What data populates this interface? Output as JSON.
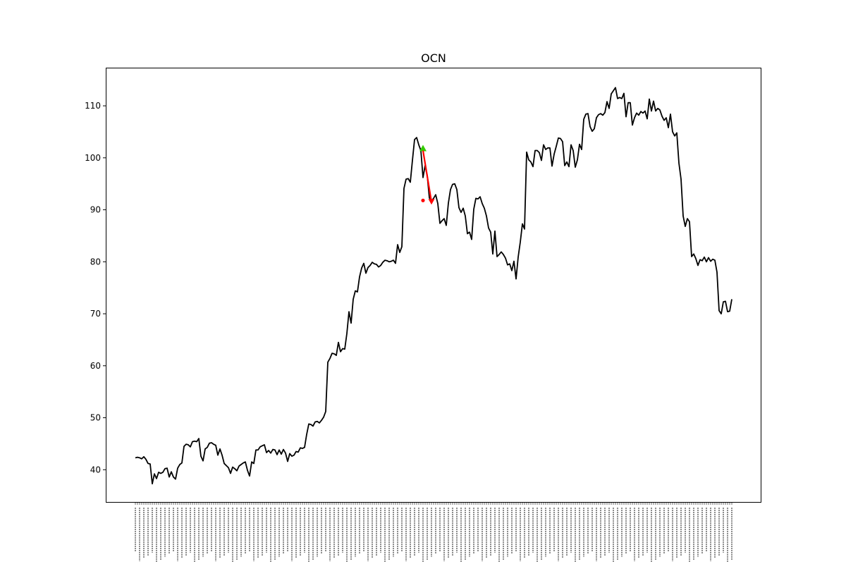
{
  "chart_data": {
    "type": "line",
    "title": "OCN",
    "xlabel": "",
    "ylabel": "",
    "ylim": [
      33.8,
      117.2
    ],
    "yticks": [
      40,
      50,
      60,
      70,
      80,
      90,
      100,
      110
    ],
    "grid": false,
    "x_tick_labels_note": "dense rotated date labels (illegible)",
    "series": [
      {
        "color": "#000000",
        "values": [
          42.3,
          42.4,
          42.3,
          42.1,
          42.5,
          42.0,
          41.2,
          41.1,
          37.3,
          39.2,
          38.3,
          39.5,
          39.3,
          39.5,
          40.2,
          40.3,
          38.6,
          39.6,
          38.6,
          38.2,
          40.3,
          41.0,
          41.3,
          44.5,
          44.9,
          44.8,
          44.4,
          45.4,
          45.5,
          45.4,
          46.0,
          42.6,
          41.7,
          44.0,
          44.3,
          45.1,
          45.2,
          44.9,
          44.7,
          42.8,
          44.0,
          42.8,
          41.2,
          40.8,
          40.4,
          39.3,
          40.5,
          40.2,
          39.8,
          40.7,
          41.0,
          41.3,
          41.5,
          39.9,
          38.8,
          41.5,
          41.2,
          43.8,
          43.8,
          44.4,
          44.6,
          44.8,
          43.3,
          43.7,
          43.2,
          43.9,
          43.8,
          42.9,
          43.8,
          43.0,
          43.9,
          43.2,
          41.6,
          43.1,
          42.6,
          42.8,
          43.5,
          43.4,
          44.2,
          44.1,
          44.3,
          46.8,
          48.8,
          48.7,
          48.4,
          49.2,
          49.3,
          49.0,
          49.5,
          50.1,
          51.2,
          60.7,
          61.4,
          62.4,
          62.3,
          62.0,
          64.5,
          62.7,
          63.3,
          63.2,
          66.2,
          70.4,
          68.2,
          72.8,
          74.4,
          74.2,
          77.1,
          78.8,
          79.7,
          77.8,
          78.9,
          79.3,
          79.9,
          79.6,
          79.5,
          79.0,
          79.3,
          79.9,
          80.3,
          80.2,
          80.0,
          80.1,
          80.3,
          79.7,
          83.3,
          81.8,
          82.9,
          94.1,
          95.9,
          96.0,
          95.3,
          99.5,
          103.5,
          103.9,
          102.5,
          101.4,
          96.2,
          98.5,
          96.6,
          92.3,
          91.7,
          92.2,
          92.9,
          91.2,
          87.4,
          87.9,
          88.3,
          87.0,
          91.3,
          93.9,
          94.9,
          95.0,
          93.9,
          90.4,
          89.5,
          90.3,
          88.8,
          85.4,
          85.7,
          84.3,
          90.1,
          92.2,
          92.1,
          92.5,
          91.2,
          90.3,
          88.8,
          86.5,
          85.7,
          81.5,
          85.9,
          81.0,
          81.4,
          81.9,
          81.4,
          80.7,
          79.4,
          79.6,
          78.3,
          80.1,
          76.7,
          80.9,
          83.8,
          87.3,
          86.3,
          101.1,
          99.6,
          99.2,
          98.3,
          101.4,
          101.4,
          101.0,
          99.5,
          102.5,
          101.6,
          101.9,
          101.9,
          98.4,
          100.7,
          102.2,
          103.8,
          103.7,
          103.1,
          98.5,
          99.2,
          98.3,
          102.5,
          101.4,
          98.2,
          99.6,
          102.6,
          101.6,
          107.4,
          108.4,
          108.5,
          106.0,
          105.1,
          105.6,
          107.7,
          108.3,
          108.5,
          108.2,
          108.7,
          110.8,
          109.5,
          112.3,
          112.9,
          113.5,
          111.4,
          111.6,
          111.4,
          112.4,
          107.9,
          110.6,
          110.6,
          106.3,
          107.7,
          108.6,
          108.2,
          108.9,
          108.6,
          109.0,
          107.5,
          111.3,
          109.0,
          110.9,
          109.0,
          109.5,
          109.2,
          108.0,
          107.2,
          107.7,
          105.8,
          108.4,
          105.0,
          104.2,
          104.8,
          99.0,
          95.9,
          88.8,
          86.8,
          88.3,
          87.7,
          81.0,
          81.5,
          80.6,
          79.3,
          80.4,
          80.2,
          80.9,
          80.0,
          80.8,
          80.1,
          80.5,
          80.3,
          78.0,
          70.6,
          70.0,
          72.3,
          72.4,
          70.4,
          70.5,
          72.8
        ]
      }
    ],
    "annotations": [
      {
        "type": "triangle-marker",
        "color": "#33cc00",
        "x_index": 136,
        "y": 101.8
      },
      {
        "type": "arrow",
        "color": "#ff0000",
        "from_x_index": 136,
        "from_y": 101.4,
        "to_x_index": 140,
        "to_y": 91.0
      },
      {
        "type": "dot",
        "color": "#ff0000",
        "x_index": 136,
        "y": 91.8
      }
    ]
  }
}
